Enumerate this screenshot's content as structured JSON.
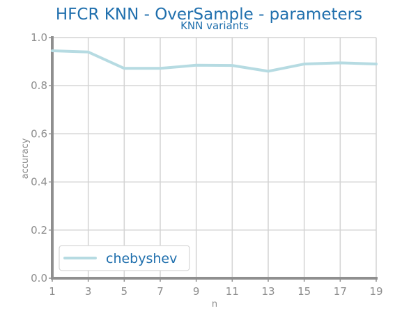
{
  "chart_data": {
    "type": "line",
    "title": "HFCR KNN - OverSample - parameters",
    "subtitle": "KNN variants",
    "xlabel": "n",
    "ylabel": "accuracy",
    "x": [
      1,
      3,
      5,
      7,
      9,
      11,
      13,
      15,
      17,
      19
    ],
    "xlim": [
      1,
      19
    ],
    "ylim": [
      0.0,
      1.0
    ],
    "xticks": [
      "1",
      "3",
      "5",
      "7",
      "9",
      "11",
      "13",
      "15",
      "17",
      "19"
    ],
    "yticks": [
      "0.0",
      "0.2",
      "0.4",
      "0.6",
      "0.8",
      "1.0"
    ],
    "grid": true,
    "legend_position": "bottom-left",
    "series": [
      {
        "name": "chebyshev",
        "color": "#b6dbe2",
        "values": [
          0.945,
          0.94,
          0.872,
          0.872,
          0.885,
          0.884,
          0.86,
          0.89,
          0.895,
          0.89
        ]
      }
    ]
  }
}
